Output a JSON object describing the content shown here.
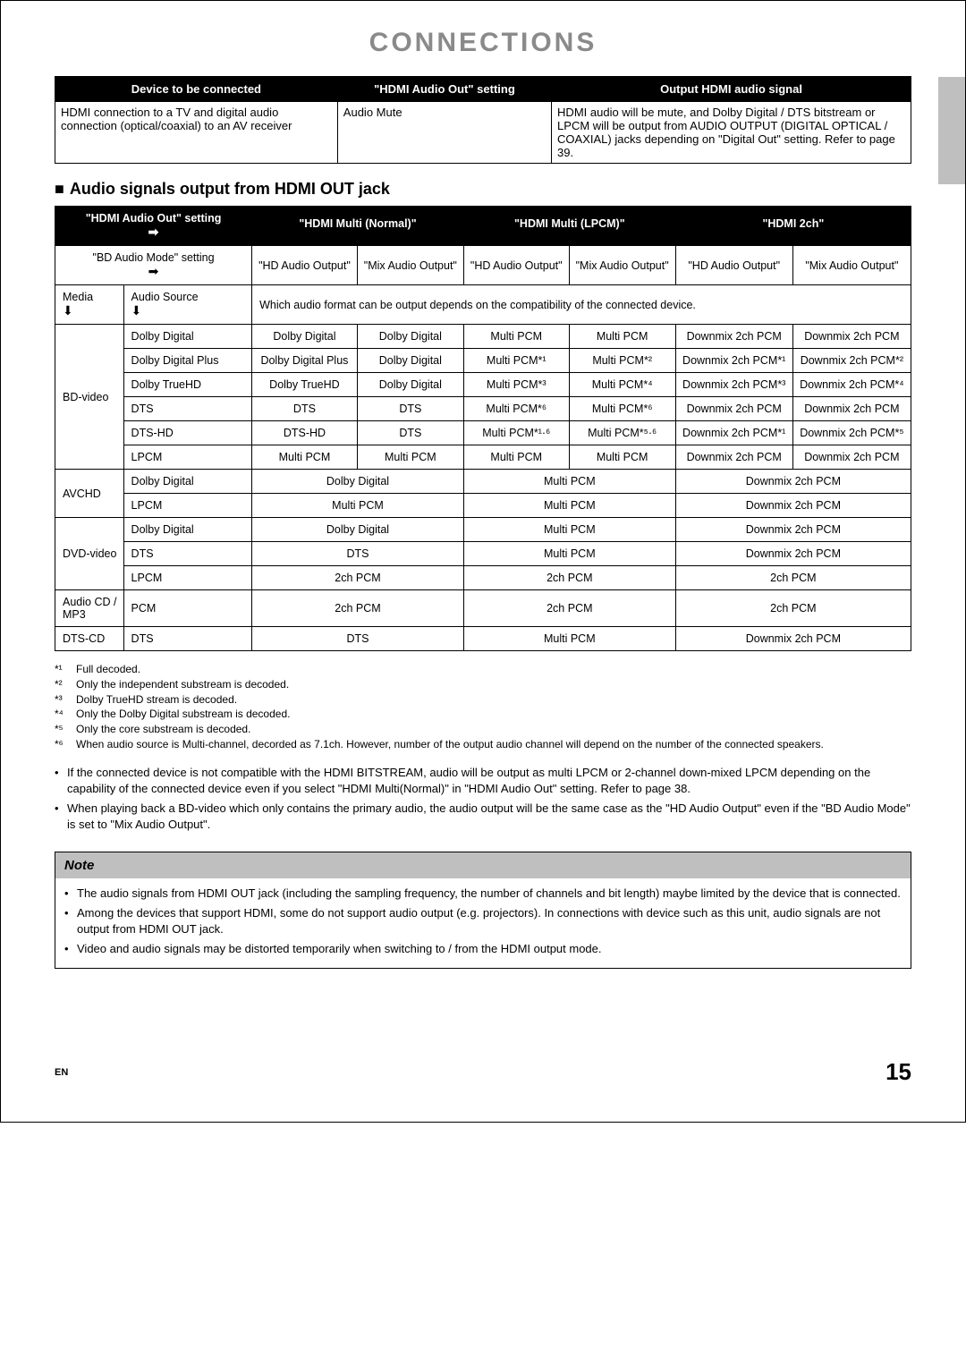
{
  "title": "CONNECTIONS",
  "table1": {
    "headers": [
      "Device to be connected",
      "\"HDMI Audio Out\" setting",
      "Output HDMI audio signal"
    ],
    "row": [
      "HDMI connection to a TV and digital audio connection (optical/coaxial) to an AV receiver",
      "Audio Mute",
      "HDMI audio will be mute, and Dolby Digital / DTS bitstream or LPCM will be output from AUDIO OUTPUT (DIGITAL OPTICAL / COAXIAL) jacks depending on \"Digital Out\" setting. Refer to page 39."
    ]
  },
  "section_heading": "Audio signals output from HDMI OUT jack",
  "t2": {
    "h1": "\"HDMI Audio Out\" setting",
    "h2": "\"HDMI Multi (Normal)\"",
    "h3": "\"HDMI Multi (LPCM)\"",
    "h4": "\"HDMI 2ch\"",
    "bd_mode": "\"BD Audio Mode\" setting",
    "hd": "\"HD Audio Output\"",
    "mix": "\"Mix Audio Output\"",
    "media": "Media",
    "audio_source": "Audio Source",
    "compat": "Which audio format can be output depends on the compatibility of the connected device.",
    "bd_video": "BD-video",
    "rows_bd": [
      {
        "src": "Dolby Digital",
        "c": [
          "Dolby Digital",
          "Dolby Digital",
          "Multi PCM",
          "Multi PCM",
          "Downmix 2ch PCM",
          "Downmix 2ch PCM"
        ]
      },
      {
        "src": "Dolby Digital Plus",
        "c": [
          "Dolby Digital Plus",
          "Dolby Digital",
          "Multi PCM*¹",
          "Multi PCM*²",
          "Downmix 2ch PCM*¹",
          "Downmix 2ch PCM*²"
        ]
      },
      {
        "src": "Dolby TrueHD",
        "c": [
          "Dolby TrueHD",
          "Dolby Digital",
          "Multi PCM*³",
          "Multi PCM*⁴",
          "Downmix 2ch PCM*³",
          "Downmix 2ch PCM*⁴"
        ]
      },
      {
        "src": "DTS",
        "c": [
          "DTS",
          "DTS",
          "Multi PCM*⁶",
          "Multi PCM*⁶",
          "Downmix 2ch PCM",
          "Downmix 2ch PCM"
        ]
      },
      {
        "src": "DTS-HD",
        "c": [
          "DTS-HD",
          "DTS",
          "Multi PCM*¹·⁶",
          "Multi PCM*⁵·⁶",
          "Downmix 2ch PCM*¹",
          "Downmix 2ch PCM*⁵"
        ]
      },
      {
        "src": "LPCM",
        "c": [
          "Multi PCM",
          "Multi PCM",
          "Multi PCM",
          "Multi PCM",
          "Downmix 2ch PCM",
          "Downmix 2ch PCM"
        ]
      }
    ],
    "avchd": "AVCHD",
    "rows_avchd": [
      {
        "src": "Dolby Digital",
        "c": [
          "Dolby Digital",
          "Multi PCM",
          "Downmix 2ch PCM"
        ]
      },
      {
        "src": "LPCM",
        "c": [
          "Multi PCM",
          "Multi PCM",
          "Downmix 2ch PCM"
        ]
      }
    ],
    "dvd": "DVD-video",
    "rows_dvd": [
      {
        "src": "Dolby Digital",
        "c": [
          "Dolby Digital",
          "Multi PCM",
          "Downmix 2ch PCM"
        ]
      },
      {
        "src": "DTS",
        "c": [
          "DTS",
          "Multi PCM",
          "Downmix 2ch PCM"
        ]
      },
      {
        "src": "LPCM",
        "c": [
          "2ch PCM",
          "2ch PCM",
          "2ch PCM"
        ]
      }
    ],
    "acd": "Audio CD / MP3",
    "rows_acd": [
      {
        "src": "PCM",
        "c": [
          "2ch PCM",
          "2ch PCM",
          "2ch PCM"
        ]
      }
    ],
    "dtscd": "DTS-CD",
    "rows_dtscd": [
      {
        "src": "DTS",
        "c": [
          "DTS",
          "Multi PCM",
          "Downmix 2ch PCM"
        ]
      }
    ]
  },
  "footnotes": [
    {
      "n": "*¹",
      "t": "Full decoded."
    },
    {
      "n": "*²",
      "t": "Only the independent substream is decoded."
    },
    {
      "n": "*³",
      "t": "Dolby TrueHD stream is decoded."
    },
    {
      "n": "*⁴",
      "t": "Only the Dolby Digital substream is decoded."
    },
    {
      "n": "*⁵",
      "t": "Only the core substream is decoded."
    },
    {
      "n": "*⁶",
      "t": "When audio source is Multi-channel, decorded as 7.1ch. However, number of the output audio channel will depend on the number of the connected speakers."
    }
  ],
  "bullets": [
    "If the connected device is not compatible with the HDMI BITSTREAM, audio will be output as multi LPCM or 2-channel down-mixed LPCM depending on the capability of the connected device even if you select \"HDMI Multi(Normal)\" in \"HDMI Audio Out\" setting. Refer to page 38.",
    "When playing back a BD-video which only contains the primary audio, the audio output will be the same case as the \"HD Audio Output\" even if the \"BD Audio Mode\" is set to \"Mix Audio Output\"."
  ],
  "note_title": "Note",
  "notes": [
    "The audio signals from HDMI OUT jack (including the sampling frequency, the number of channels and bit length) maybe limited by the device that is connected.",
    "Among the devices that support HDMI, some do not support audio output (e.g. projectors). In connections with device such as this unit, audio signals are not output from HDMI OUT jack.",
    "Video and audio signals may be distorted temporarily when switching to / from the HDMI output mode."
  ],
  "footer": {
    "lang": "EN",
    "page": "15"
  }
}
